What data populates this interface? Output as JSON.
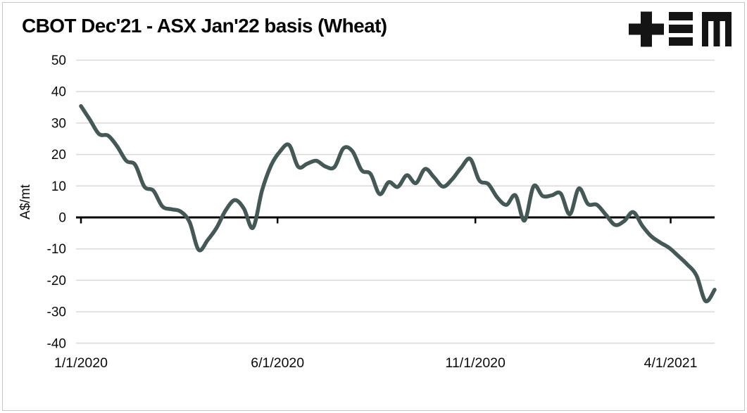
{
  "header": {
    "title": "CBOT Dec'21 - ASX Jan'22 basis (Wheat)"
  },
  "logo": {
    "name": "tem-logo",
    "color": "#141414"
  },
  "chart_data": {
    "type": "line",
    "title": "CBOT Dec'21 - ASX Jan'22 basis (Wheat)",
    "xlabel": "",
    "ylabel": "A$/mt",
    "ylim": [
      -40,
      50
    ],
    "y_tick_step": 10,
    "y_ticks": [
      50,
      40,
      30,
      20,
      10,
      0,
      -10,
      -20,
      -30,
      -40
    ],
    "x_tick_labels": [
      "1/1/2020",
      "6/1/2020",
      "11/1/2020",
      "4/1/2021"
    ],
    "grid": "horizontal-only",
    "legend": "none",
    "line_color": "#445856",
    "line_width": 5.5,
    "grid_color": "#d9d9d9",
    "axis_color": "#000000",
    "series": [
      {
        "name": "CBOT Dec'21 - ASX Jan'22 basis (Wheat)",
        "x_dates": [
          "1/1/2020",
          "1/8/2020",
          "1/15/2020",
          "1/22/2020",
          "1/29/2020",
          "2/5/2020",
          "2/12/2020",
          "2/19/2020",
          "2/26/2020",
          "3/4/2020",
          "3/11/2020",
          "3/18/2020",
          "3/25/2020",
          "4/1/2020",
          "4/8/2020",
          "4/15/2020",
          "4/22/2020",
          "4/29/2020",
          "5/6/2020",
          "5/13/2020",
          "5/20/2020",
          "5/27/2020",
          "6/3/2020",
          "6/10/2020",
          "6/17/2020",
          "6/24/2020",
          "7/1/2020",
          "7/8/2020",
          "7/15/2020",
          "7/22/2020",
          "7/29/2020",
          "8/5/2020",
          "8/12/2020",
          "8/19/2020",
          "8/26/2020",
          "9/2/2020",
          "9/9/2020",
          "9/16/2020",
          "9/23/2020",
          "9/30/2020",
          "10/7/2020",
          "10/14/2020",
          "10/21/2020",
          "10/28/2020",
          "11/4/2020",
          "11/11/2020",
          "11/18/2020",
          "11/25/2020",
          "12/2/2020",
          "12/9/2020",
          "12/16/2020",
          "12/23/2020",
          "12/30/2020",
          "1/6/2021",
          "1/13/2021",
          "1/20/2021",
          "1/27/2021",
          "2/3/2021",
          "2/10/2021",
          "2/17/2021",
          "2/24/2021",
          "3/3/2021",
          "3/10/2021",
          "3/17/2021",
          "3/24/2021",
          "3/31/2021",
          "4/7/2021",
          "4/14/2021",
          "4/21/2021",
          "4/28/2021",
          "5/5/2021"
        ],
        "values": [
          35.4,
          31.0,
          26.5,
          26.0,
          22.6,
          18.0,
          16.7,
          9.8,
          8.5,
          3.5,
          2.6,
          1.9,
          -1.5,
          -10.3,
          -7.2,
          -3.2,
          2.3,
          5.5,
          2.8,
          -3.3,
          8.5,
          16.5,
          21.0,
          23.0,
          16.1,
          17.1,
          18.0,
          16.2,
          16.0,
          22.0,
          21.0,
          15.0,
          13.8,
          7.4,
          11.2,
          9.7,
          13.4,
          10.9,
          15.4,
          12.8,
          9.8,
          12.1,
          15.8,
          18.6,
          11.8,
          10.6,
          6.3,
          4.0,
          7.0,
          -1.0,
          9.9,
          6.8,
          7.0,
          7.6,
          1.0,
          9.2,
          4.3,
          4.0,
          0.8,
          -2.4,
          -1.2,
          1.7,
          -2.6,
          -6.0,
          -8.0,
          -9.7,
          -12.3,
          -15.0,
          -18.5,
          -26.6,
          -23.0
        ]
      }
    ]
  }
}
